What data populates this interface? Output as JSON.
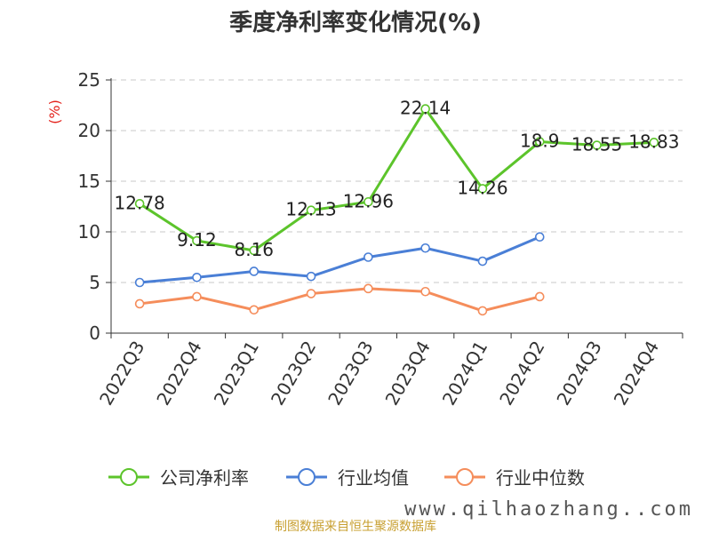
{
  "chart_data": {
    "type": "line",
    "title": "季度净利率变化情况(%)",
    "ylabel": "(%)",
    "xlabel": "",
    "categories": [
      "2022Q3",
      "2022Q4",
      "2023Q1",
      "2023Q2",
      "2023Q3",
      "2023Q4",
      "2024Q1",
      "2024Q2",
      "2024Q3",
      "2024Q4"
    ],
    "ylim": [
      0,
      25
    ],
    "yticks": [
      0,
      5,
      10,
      15,
      20,
      25
    ],
    "grid": true,
    "legend_position": "bottom",
    "series": [
      {
        "name": "公司净利率",
        "color": "#5cc42b",
        "values": [
          12.78,
          9.12,
          8.16,
          12.13,
          12.96,
          22.14,
          14.26,
          18.9,
          18.55,
          18.83
        ],
        "show_labels": true
      },
      {
        "name": "行业均值",
        "color": "#4a7fd6",
        "values": [
          5.0,
          5.5,
          6.1,
          5.6,
          7.5,
          8.4,
          7.1,
          9.5,
          null,
          null
        ],
        "show_labels": false
      },
      {
        "name": "行业中位数",
        "color": "#f58d5b",
        "values": [
          2.9,
          3.6,
          2.3,
          3.9,
          4.4,
          4.1,
          2.2,
          3.6,
          null,
          null
        ],
        "show_labels": false
      }
    ]
  },
  "source_text": "制图数据来自恒生聚源数据库",
  "watermark_text": "www.qilhaozhang..com"
}
